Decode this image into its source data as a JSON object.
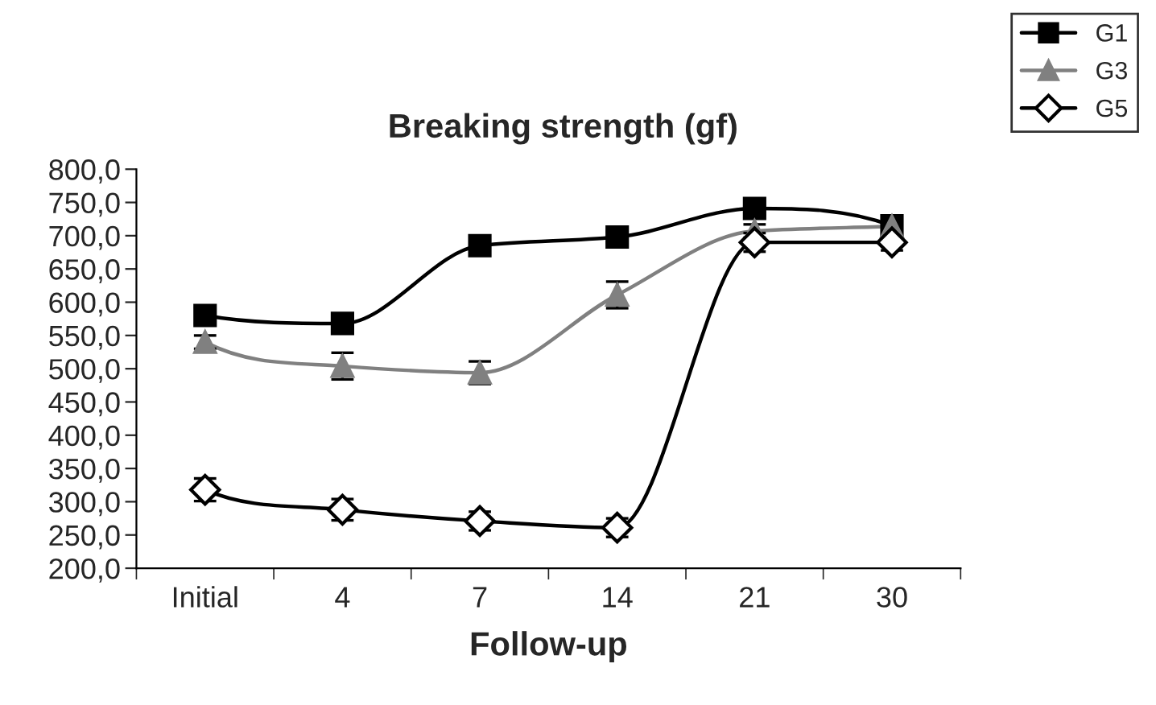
{
  "chart_data": {
    "type": "line",
    "title": "Breaking strength (gf)",
    "xlabel": "Follow-up",
    "categories": [
      "Initial",
      "4",
      "7",
      "14",
      "21",
      "30"
    ],
    "series": [
      {
        "name": "G1",
        "color": "#000000",
        "marker": "square",
        "values": [
          580,
          568,
          685,
          698,
          741,
          715
        ],
        "errors": [
          12,
          14,
          8,
          8,
          10,
          10
        ]
      },
      {
        "name": "G3",
        "color": "#808080",
        "marker": "triangle",
        "values": [
          540,
          504,
          494,
          611,
          707,
          714
        ],
        "errors": [
          10,
          20,
          17,
          20,
          10,
          10
        ]
      },
      {
        "name": "G5",
        "color": "#000000",
        "marker": "diamond",
        "values": [
          318,
          288,
          271,
          261,
          690,
          690
        ],
        "errors": [
          17,
          16,
          14,
          14,
          14,
          12
        ]
      }
    ],
    "ylim": [
      200,
      800
    ],
    "yticks": [
      {
        "value": 200,
        "label": "200,0"
      },
      {
        "value": 250,
        "label": "250,0"
      },
      {
        "value": 300,
        "label": "300,0"
      },
      {
        "value": 350,
        "label": "350,0"
      },
      {
        "value": 400,
        "label": "400,0"
      },
      {
        "value": 450,
        "label": "450,0"
      },
      {
        "value": 500,
        "label": "500,0"
      },
      {
        "value": 550,
        "label": "550,0"
      },
      {
        "value": 600,
        "label": "600,0"
      },
      {
        "value": 650,
        "label": "650,0"
      },
      {
        "value": 700,
        "label": "700,0"
      },
      {
        "value": 750,
        "label": "750,0"
      },
      {
        "value": 800,
        "label": "800,0"
      }
    ],
    "grid": false,
    "legend": "top right",
    "line_style": "solid"
  }
}
